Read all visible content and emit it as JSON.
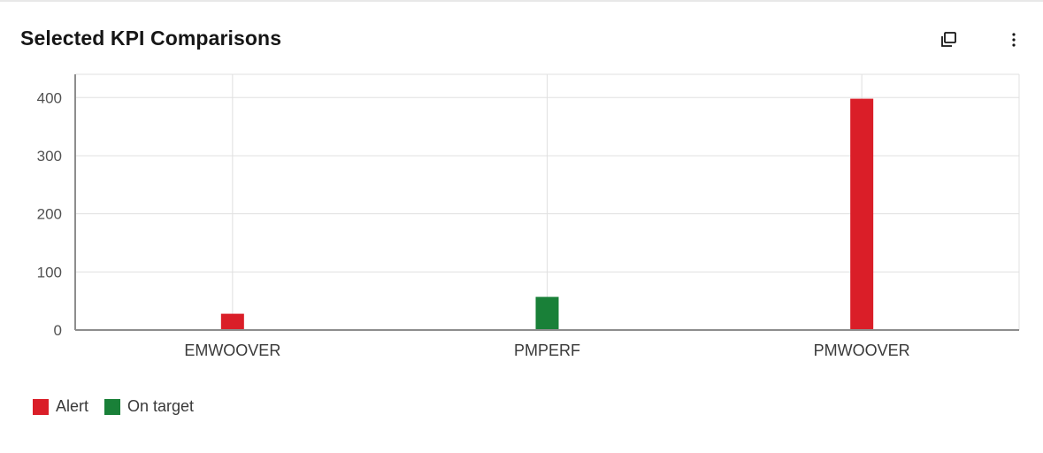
{
  "header": {
    "title": "Selected KPI Comparisons",
    "expand_icon": "expand-window-icon",
    "menu_icon": "overflow-menu-vertical-icon"
  },
  "colors": {
    "alert": "#da1e28",
    "on_target": "#198038"
  },
  "chart_data": {
    "type": "bar",
    "categories": [
      "EMWOOVER",
      "PMPERF",
      "PMWOOVER"
    ],
    "series": [
      {
        "name": "Alert",
        "values": [
          28,
          0,
          398
        ]
      },
      {
        "name": "On target",
        "values": [
          0,
          57,
          0
        ]
      }
    ],
    "bars": [
      {
        "category": "EMWOOVER",
        "series": "Alert",
        "value": 28
      },
      {
        "category": "PMPERF",
        "series": "On target",
        "value": 57
      },
      {
        "category": "PMWOOVER",
        "series": "Alert",
        "value": 398
      }
    ],
    "title": "",
    "xlabel": "",
    "ylabel": "",
    "ylim": [
      0,
      440
    ],
    "yticks": [
      0,
      100,
      200,
      300,
      400
    ],
    "grid": true,
    "legend_position": "bottom-left"
  },
  "legend": [
    {
      "label": "Alert",
      "color_key": "alert"
    },
    {
      "label": "On target",
      "color_key": "on_target"
    }
  ]
}
